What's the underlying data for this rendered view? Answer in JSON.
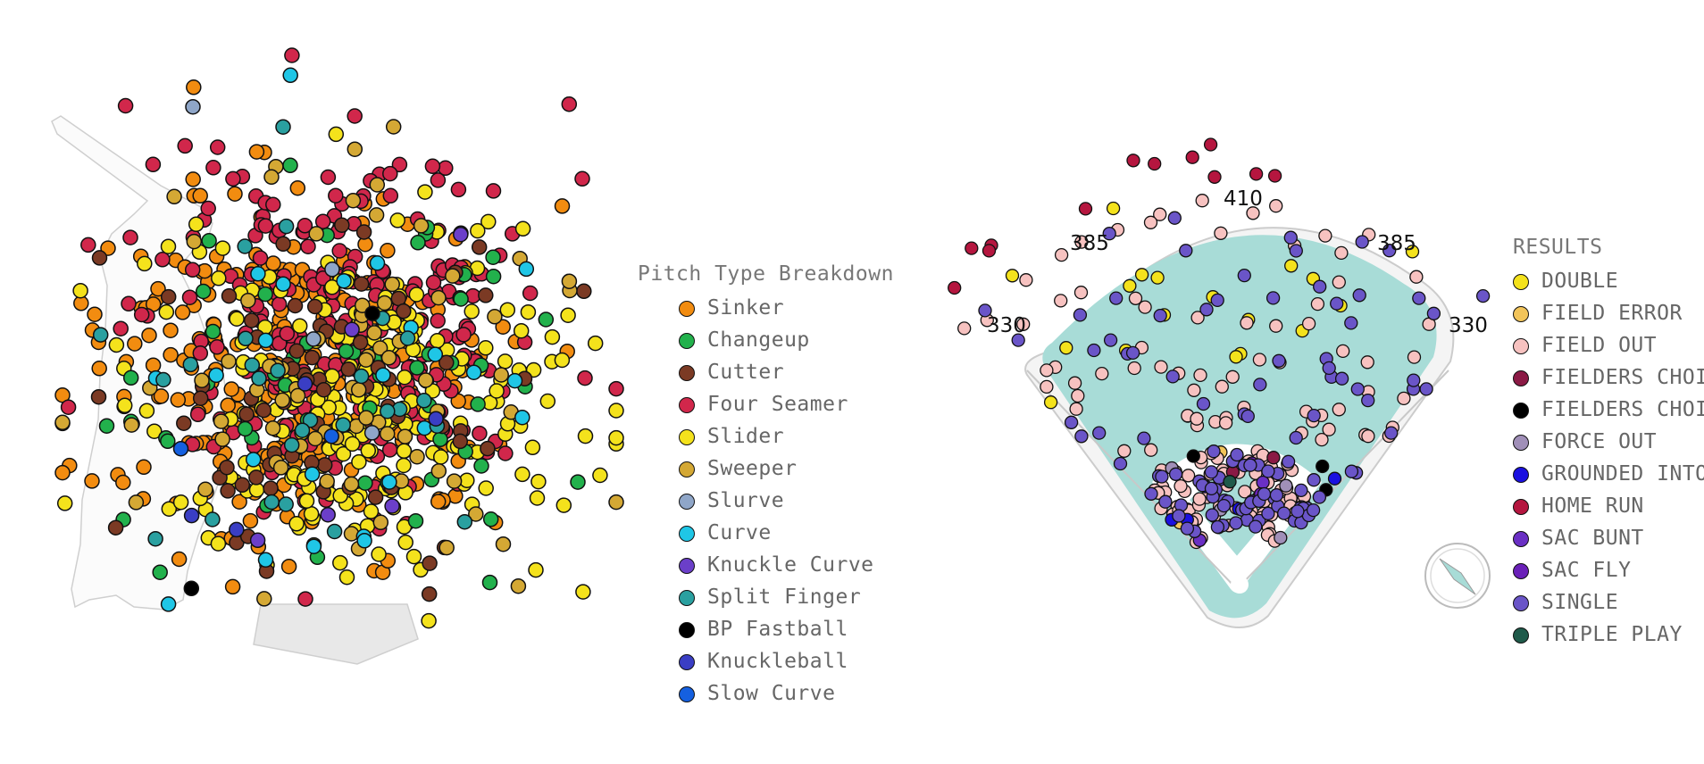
{
  "chart_data": [
    {
      "type": "scatter",
      "title": "Pitch Type Breakdown",
      "series": [
        {
          "name": "Sinker",
          "color": "#f28c10",
          "count": 300
        },
        {
          "name": "Changeup",
          "color": "#22b14c",
          "count": 55
        },
        {
          "name": "Cutter",
          "color": "#7b3a24",
          "count": 75
        },
        {
          "name": "Four Seamer",
          "color": "#d1274b",
          "count": 260
        },
        {
          "name": "Slider",
          "color": "#f4e21c",
          "count": 230
        },
        {
          "name": "Sweeper",
          "color": "#d4a834",
          "count": 80
        },
        {
          "name": "Slurve",
          "color": "#8fa6c8",
          "count": 4
        },
        {
          "name": "Curve",
          "color": "#1fc6e6",
          "count": 24
        },
        {
          "name": "Knuckle Curve",
          "color": "#6b3fc9",
          "count": 5
        },
        {
          "name": "Split Finger",
          "color": "#2aa0a0",
          "count": 28
        },
        {
          "name": "BP Fastball",
          "color": "#000000",
          "count": 2
        },
        {
          "name": "Knuckleball",
          "color": "#3a3ec4",
          "count": 4
        },
        {
          "name": "Slow Curve",
          "color": "#1560e0",
          "count": 2
        }
      ]
    },
    {
      "type": "scatter",
      "title": "RESULTS",
      "distances": {
        "left": "330",
        "left_center": "385",
        "center": "410",
        "right_center": "385",
        "right": "330"
      },
      "series": [
        {
          "name": "DOUBLE",
          "color": "#f4e21c",
          "count": 18
        },
        {
          "name": "FIELD ERROR",
          "color": "#f2c45a",
          "count": 2
        },
        {
          "name": "FIELD OUT",
          "color": "#f7c2c0",
          "count": 150
        },
        {
          "name": "FIELDERS CHOICE",
          "color": "#8b1a45",
          "count": 2
        },
        {
          "name": "FIELDERS CHOICE OUT",
          "color": "#000000",
          "count": 4
        },
        {
          "name": "FORCE OUT",
          "color": "#a08fb8",
          "count": 4
        },
        {
          "name": "GROUNDED INTO DOUBLE PLAY",
          "color": "#1a10e0",
          "count": 5
        },
        {
          "name": "HOME RUN",
          "color": "#b5163f",
          "count": 12
        },
        {
          "name": "SAC BUNT",
          "color": "#6a2fc4",
          "count": 3
        },
        {
          "name": "SAC FLY",
          "color": "#6a20b8",
          "count": 2
        },
        {
          "name": "SINGLE",
          "color": "#6a55c8",
          "count": 110
        },
        {
          "name": "TRIPLE PLAY",
          "color": "#1f5a4a",
          "count": 1
        }
      ]
    }
  ]
}
